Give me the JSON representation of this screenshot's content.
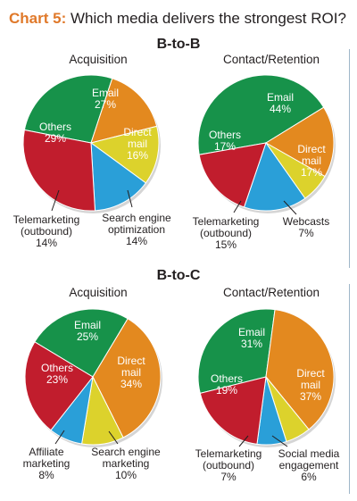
{
  "header": {
    "prefix": "Chart 5:",
    "title": " Which media delivers the strongest ROI?"
  },
  "sections": [
    {
      "label": "B-to-B"
    },
    {
      "label": "B-to-C"
    }
  ],
  "colors": {
    "green": "#17924a",
    "orange": "#e3891f",
    "yellow": "#dcd22c",
    "blue": "#2a9fd8",
    "red": "#c11d2d"
  },
  "chart_data": [
    {
      "type": "pie",
      "section": "B-to-B",
      "title": "Acquisition",
      "slices": [
        {
          "label": "Email",
          "value": 27,
          "color": "#17924a"
        },
        {
          "label": "Direct mail",
          "value": 16,
          "color": "#e3891f"
        },
        {
          "label": "Search engine optimization",
          "value": 14,
          "color": "#dcd22c"
        },
        {
          "label": "Telemarketing (outbound)",
          "value": 14,
          "color": "#2a9fd8"
        },
        {
          "label": "Others",
          "value": 29,
          "color": "#c11d2d"
        }
      ]
    },
    {
      "type": "pie",
      "section": "B-to-B",
      "title": "Contact/Retention",
      "slices": [
        {
          "label": "Email",
          "value": 44,
          "color": "#17924a"
        },
        {
          "label": "Direct mail",
          "value": 17,
          "color": "#e3891f"
        },
        {
          "label": "Webcasts",
          "value": 7,
          "color": "#dcd22c"
        },
        {
          "label": "Telemarketing (outbound)",
          "value": 15,
          "color": "#2a9fd8"
        },
        {
          "label": "Others",
          "value": 17,
          "color": "#c11d2d"
        }
      ]
    },
    {
      "type": "pie",
      "section": "B-to-C",
      "title": "Acquisition",
      "slices": [
        {
          "label": "Email",
          "value": 25,
          "color": "#17924a"
        },
        {
          "label": "Direct mail",
          "value": 34,
          "color": "#e3891f"
        },
        {
          "label": "Search engine marketing",
          "value": 10,
          "color": "#dcd22c"
        },
        {
          "label": "Affiliate marketing",
          "value": 8,
          "color": "#2a9fd8"
        },
        {
          "label": "Others",
          "value": 23,
          "color": "#c11d2d"
        }
      ]
    },
    {
      "type": "pie",
      "section": "B-to-C",
      "title": "Contact/Retention",
      "slices": [
        {
          "label": "Email",
          "value": 31,
          "color": "#17924a"
        },
        {
          "label": "Direct mail",
          "value": 37,
          "color": "#e3891f"
        },
        {
          "label": "Social media engagement",
          "value": 6,
          "color": "#dcd22c"
        },
        {
          "label": "Telemarketing (outbound)",
          "value": 7,
          "color": "#2a9fd8"
        },
        {
          "label": "Others",
          "value": 19,
          "color": "#c11d2d"
        }
      ]
    }
  ]
}
